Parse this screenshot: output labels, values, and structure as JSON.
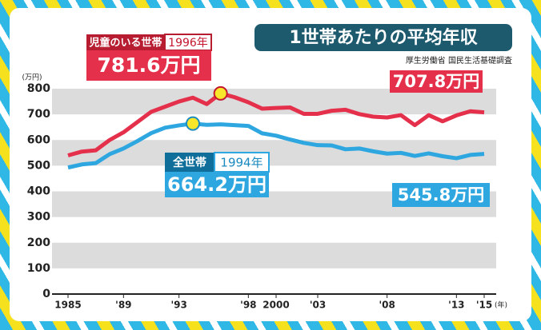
{
  "chart_data": {
    "type": "line",
    "title": "1世帯あたりの平均年収",
    "source": "厚生労働省 国民生活基礎調査",
    "y_unit": "(万円)",
    "x_unit": "(年)",
    "x": [
      1985,
      1986,
      1987,
      1988,
      1989,
      1990,
      1991,
      1992,
      1993,
      1994,
      1995,
      1996,
      1997,
      1998,
      1999,
      2000,
      2001,
      2002,
      2003,
      2004,
      2005,
      2006,
      2007,
      2008,
      2009,
      2010,
      2011,
      2012,
      2013,
      2014,
      2015
    ],
    "series": [
      {
        "name": "児童のいる世帯",
        "color": "#e5304b",
        "values": [
          540,
          555,
          560,
          600,
          630,
          670,
          710,
          730,
          750,
          765,
          740,
          781.6,
          767,
          747,
          722,
          725,
          727,
          702,
          702,
          714,
          718,
          701,
          691,
          688,
          697,
          658,
          697,
          673,
          696,
          712,
          707.8
        ],
        "value_labels": [
          null,
          null,
          null,
          null,
          null,
          null,
          null,
          null,
          null,
          null,
          null,
          "781.6万円",
          null,
          null,
          null,
          null,
          null,
          null,
          null,
          null,
          null,
          null,
          null,
          null,
          null,
          null,
          null,
          null,
          null,
          null,
          "707.8万円"
        ]
      },
      {
        "name": "全世帯",
        "color": "#2ea7e0",
        "values": [
          493,
          505,
          510,
          545,
          567,
          596,
          627,
          648,
          657,
          664.2,
          659,
          661,
          658,
          655,
          626,
          617,
          602,
          589,
          580,
          579,
          564,
          567,
          556,
          547,
          550,
          538,
          548,
          537,
          529,
          542,
          545.8
        ],
        "value_labels": [
          null,
          null,
          null,
          null,
          null,
          null,
          null,
          null,
          null,
          "664.2万円",
          null,
          null,
          null,
          null,
          null,
          null,
          null,
          null,
          null,
          null,
          null,
          null,
          null,
          null,
          null,
          null,
          null,
          null,
          null,
          null,
          "545.8万円"
        ]
      }
    ],
    "annotations": [
      "1996年",
      "1994年"
    ],
    "xlim": [
      1985,
      2015
    ],
    "xticks": [
      1985,
      {
        "value": 1989,
        "label": "'89"
      },
      {
        "value": 1993,
        "label": "'93"
      },
      {
        "value": 1998,
        "label": "'98"
      },
      2000,
      {
        "value": 2003,
        "label": "'03"
      },
      {
        "value": 2008,
        "label": "'08"
      },
      {
        "value": 2013,
        "label": "'13"
      },
      {
        "value": 2015,
        "label": "'15"
      }
    ],
    "ylim": [
      0,
      800
    ],
    "yticks": [
      0,
      100,
      200,
      300,
      400,
      500,
      600,
      700,
      800
    ],
    "grid": true
  }
}
